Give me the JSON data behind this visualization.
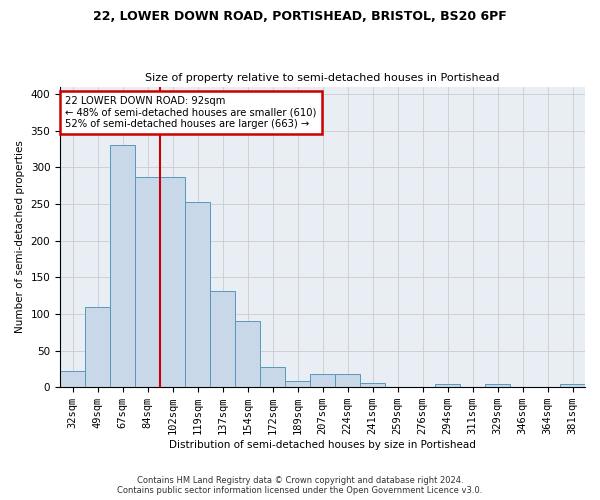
{
  "title": "22, LOWER DOWN ROAD, PORTISHEAD, BRISTOL, BS20 6PF",
  "subtitle": "Size of property relative to semi-detached houses in Portishead",
  "xlabel": "Distribution of semi-detached houses by size in Portishead",
  "ylabel": "Number of semi-detached properties",
  "footer_line1": "Contains HM Land Registry data © Crown copyright and database right 2024.",
  "footer_line2": "Contains public sector information licensed under the Open Government Licence v3.0.",
  "bar_labels": [
    "32sqm",
    "49sqm",
    "67sqm",
    "84sqm",
    "102sqm",
    "119sqm",
    "137sqm",
    "154sqm",
    "172sqm",
    "189sqm",
    "207sqm",
    "224sqm",
    "241sqm",
    "259sqm",
    "276sqm",
    "294sqm",
    "311sqm",
    "329sqm",
    "346sqm",
    "364sqm",
    "381sqm"
  ],
  "bar_values": [
    22,
    110,
    330,
    287,
    287,
    253,
    131,
    90,
    27,
    8,
    18,
    18,
    6,
    0,
    0,
    4,
    0,
    4,
    0,
    0,
    5
  ],
  "bar_color": "#c8d8e8",
  "bar_edge_color": "#5599bb",
  "annotation_title": "22 LOWER DOWN ROAD: 92sqm",
  "annotation_line2": "← 48% of semi-detached houses are smaller (610)",
  "annotation_line3": "52% of semi-detached houses are larger (663) →",
  "annotation_color": "#cc0000",
  "vline_x": 3.5,
  "ylim": [
    0,
    410
  ],
  "yticks": [
    0,
    50,
    100,
    150,
    200,
    250,
    300,
    350,
    400
  ],
  "grid_color": "#cccccc",
  "bg_color": "#e8eef4"
}
